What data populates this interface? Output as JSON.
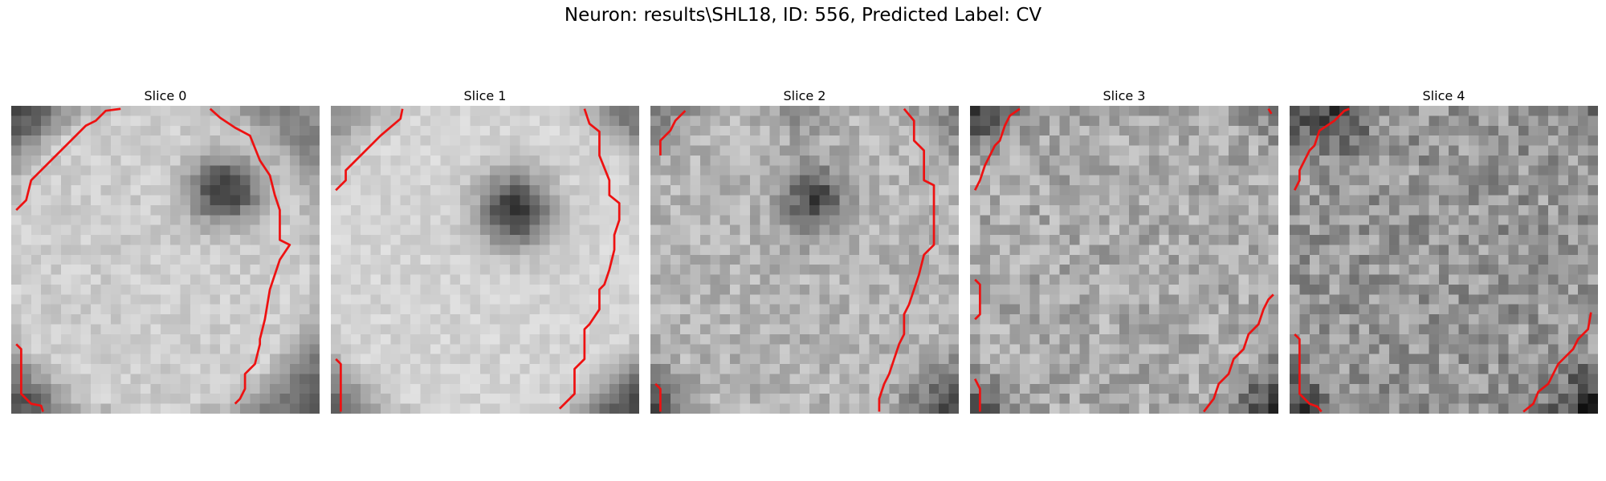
{
  "figure": {
    "title": "Neuron: results\\SHL18, ID: 556, Predicted Label: CV"
  },
  "panels": [
    {
      "title": "Slice 0"
    },
    {
      "title": "Slice 1"
    },
    {
      "title": "Slice 2"
    },
    {
      "title": "Slice 3"
    },
    {
      "title": "Slice 4"
    }
  ],
  "colors": {
    "contour": "#ee1111",
    "colormap": "grayscale"
  }
}
